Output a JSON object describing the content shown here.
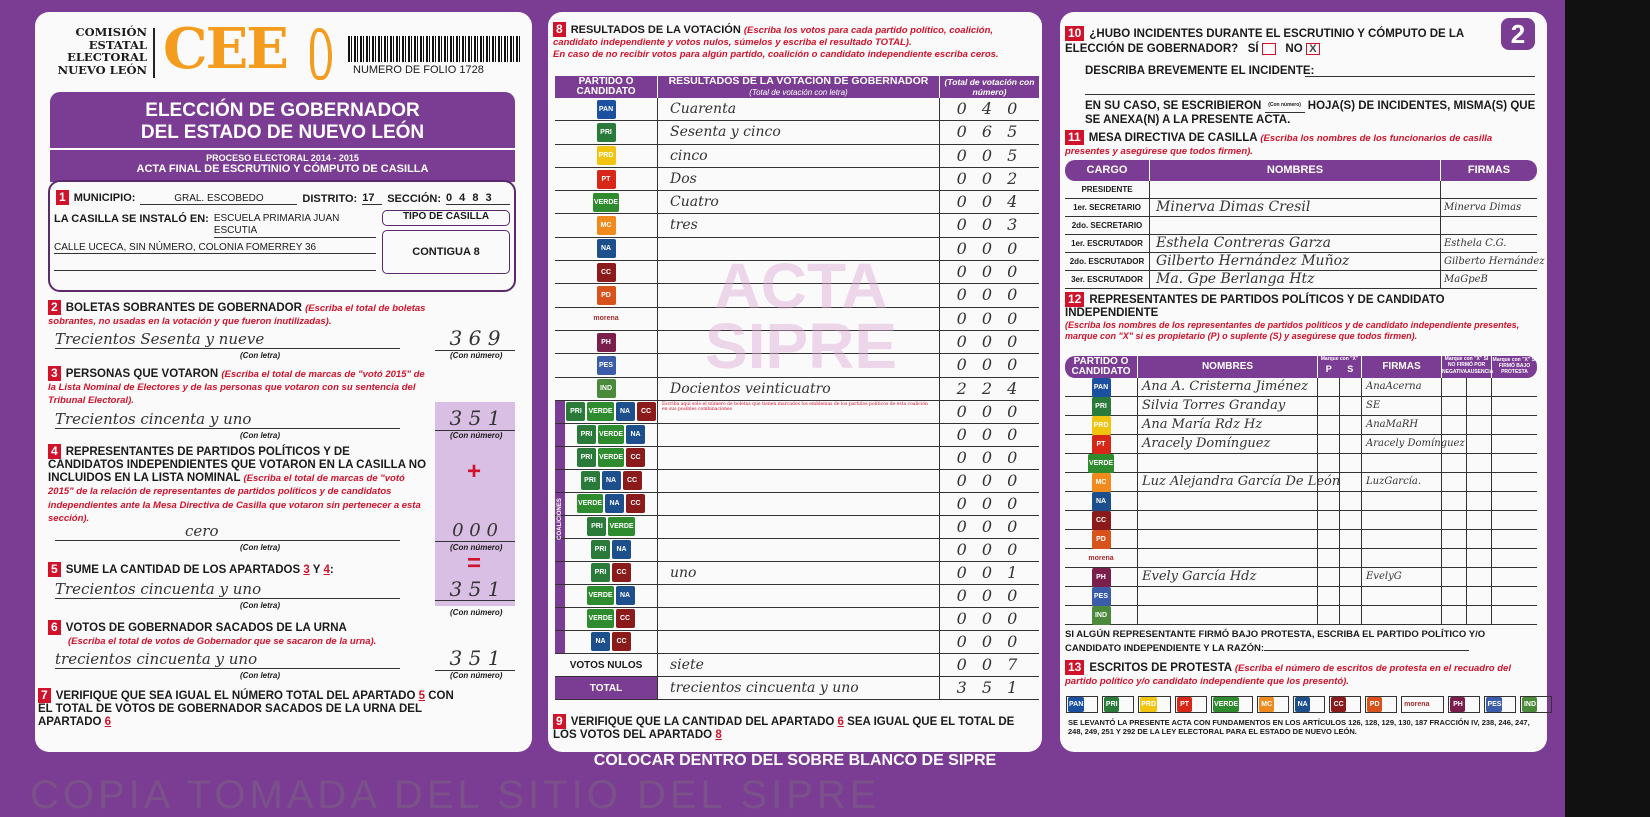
{
  "header": {
    "org_lines": [
      "COMISIÓN",
      "ESTATAL",
      "ELECTORAL",
      "NUEVO LEÓN"
    ],
    "logo": "CEE",
    "folio": "NUMERO DE FOLIO 1728",
    "page_number": "2"
  },
  "title": {
    "line1": "ELECCIÓN DE GOBERNADOR",
    "line2": "DEL ESTADO DE NUEVO LEÓN",
    "process": "PROCESO ELECTORAL  2014 - 2015",
    "acta": "ACTA FINAL DE ESCRUTINIO Y CÓMPUTO DE CASILLA"
  },
  "s1": {
    "n": "1",
    "municipio_label": "MUNICIPIO:",
    "municipio": "GRAL. ESCOBEDO",
    "distrito_label": "DISTRITO:",
    "distrito": "17",
    "seccion_label": "SECCIÓN:",
    "seccion": "0 4 8 3",
    "instalo_label": "LA CASILLA SE INSTALÓ EN:",
    "lugar": "ESCUELA PRIMARIA JUAN ESCUTIA",
    "direccion": "CALLE UCECA, SIN NÚMERO, COLONIA FOMERREY 36",
    "tipo_label": "TIPO DE CASILLA",
    "tipo": "CONTIGUA 8"
  },
  "s2": {
    "n": "2",
    "title": "BOLETAS SOBRANTES DE GOBERNADOR",
    "hint": "(Escriba el total de boletas sobrantes, no usadas en la votación y que fueron inutilizadas).",
    "letra": "Trecientos Sesenta y nueve",
    "numero": "3 6 9"
  },
  "s3": {
    "n": "3",
    "title": "PERSONAS QUE VOTARON",
    "hint": "(Escriba el total de marcas de \"votó 2015\" de la Lista Nominal de Electores y de las personas que votaron con su sentencia del Tribunal Electoral).",
    "letra": "Trecientos cincenta y uno",
    "numero": "3 5 1"
  },
  "s4": {
    "n": "4",
    "title": "REPRESENTANTES DE PARTIDOS POLÍTICOS Y DE CANDIDATOS INDEPENDIENTES QUE VOTARON EN LA CASILLA NO INCLUIDOS EN LA LISTA NOMINAL",
    "hint": "(Escriba el total de marcas de \"votó 2015\" de la relación de representantes de partidos políticos y de candidatos independientes ante la Mesa Directiva de Casilla que votaron sin pertenecer a esta sección).",
    "letra": "cero",
    "numero": "0 0 0",
    "plus": "+"
  },
  "s5": {
    "n": "5",
    "title": "SUME LA CANTIDAD DE LOS APARTADOS",
    "a": "3",
    "y": "Y",
    "b": "4",
    "colon": ":",
    "letra": "Trecientos cincuenta y uno",
    "numero": "3 5 1",
    "equals": "="
  },
  "s6": {
    "n": "6",
    "title": "VOTOS DE GOBERNADOR SACADOS DE LA URNA",
    "hint": "(Escriba el total de votos de Gobernador que se sacaron de la urna).",
    "letra": "trecientos cincuenta y uno",
    "numero": "3 5 1"
  },
  "s7": {
    "n": "7",
    "text1": "VERIFIQUE QUE SEA IGUAL EL NÚMERO TOTAL DEL APARTADO",
    "a": "5",
    "text2": "CON EL TOTAL DE VOTOS DE GOBERNADOR SACADOS DE LA URNA DEL APARTADO",
    "b": "6"
  },
  "labels": {
    "con_letra": "(Con letra)",
    "con_numero": "(Con número)"
  },
  "s8": {
    "n": "8",
    "title": "RESULTADOS DE LA VOTACIÓN",
    "hint": "(Escriba los votos para cada partido político, coalición, candidato independiente y votos nulos, súmelos y escriba el resultado TOTAL).",
    "hint2": "En caso de no recibir votos para algún partido, coalición o candidato independiente escriba ceros.",
    "col1": "PARTIDO O CANDIDATO",
    "col2": "RESULTADOS DE LA VOTACIÓN DE GOBERNADOR",
    "col2_sub": "(Total de votación con letra)",
    "col3": "(Total de votación con número)",
    "coaliciones_label": "COALICIONES",
    "coalition_note": "Escriba aquí solo el número de boletas que tienen marcados los emblemas de los partidos políticos de esta coalición en sus posibles combinaciones",
    "watermark": [
      "ACTA",
      "SIPRE"
    ],
    "parties": [
      {
        "logo": "PAN",
        "color": "#1b4fa0",
        "letra": "Cuarenta",
        "numero": "0 4 0"
      },
      {
        "logo": "PRI",
        "color": "#2a7a3a",
        "letra": "Sesenta y cinco",
        "numero": "0 6 5"
      },
      {
        "logo": "PRD",
        "color": "#f1c40f",
        "letra": "cinco",
        "numero": "0 0 5"
      },
      {
        "logo": "PT",
        "color": "#d62718",
        "letra": "Dos",
        "numero": "0 0 2"
      },
      {
        "logo": "VERDE",
        "color": "#2e8b2e",
        "letra": "Cuatro",
        "numero": "0 0 4"
      },
      {
        "logo": "MC",
        "color": "#f08a1c",
        "letra": "tres",
        "numero": "0 0 3"
      },
      {
        "logo": "NA",
        "color": "#1d4f8c",
        "letra": "",
        "numero": "0 0 0"
      },
      {
        "logo": "CC",
        "color": "#8b1a1a",
        "letra": "",
        "numero": "0 0 0"
      },
      {
        "logo": "PD",
        "color": "#d8531c",
        "letra": "",
        "numero": "0 0 0"
      },
      {
        "logo": "morena",
        "color": "#a52a2a",
        "letra": "",
        "numero": "0 0 0"
      },
      {
        "logo": "PH",
        "color": "#7a1f4b",
        "letra": "",
        "numero": "0 0 0"
      },
      {
        "logo": "PES",
        "color": "#3b5ca8",
        "letra": "",
        "numero": "0 0 0"
      },
      {
        "logo": "IND",
        "color": "#4a8a3a",
        "letra": "Docientos veinticuatro",
        "numero": "2 2 4"
      }
    ],
    "coalitions": [
      {
        "logos": [
          "PRI",
          "VERDE",
          "NA",
          "CC"
        ],
        "letra": "",
        "numero": "0 0 0"
      },
      {
        "logos": [
          "PRI",
          "VERDE",
          "NA"
        ],
        "letra": "",
        "numero": "0 0 0"
      },
      {
        "logos": [
          "PRI",
          "VERDE",
          "CC"
        ],
        "letra": "",
        "numero": "0 0 0"
      },
      {
        "logos": [
          "PRI",
          "NA",
          "CC"
        ],
        "letra": "",
        "numero": "0 0 0"
      },
      {
        "logos": [
          "VERDE",
          "NA",
          "CC"
        ],
        "letra": "",
        "numero": "0 0 0"
      },
      {
        "logos": [
          "PRI",
          "VERDE"
        ],
        "letra": "",
        "numero": "0 0 0"
      },
      {
        "logos": [
          "PRI",
          "NA"
        ],
        "letra": "",
        "numero": "0 0 0"
      },
      {
        "logos": [
          "PRI",
          "CC"
        ],
        "letra": "uno",
        "numero": "0 0 1"
      },
      {
        "logos": [
          "VERDE",
          "NA"
        ],
        "letra": "",
        "numero": "0 0 0"
      },
      {
        "logos": [
          "VERDE",
          "CC"
        ],
        "letra": "",
        "numero": "0 0 0"
      },
      {
        "logos": [
          "NA",
          "CC"
        ],
        "letra": "",
        "numero": "0 0 0"
      }
    ],
    "nulos": {
      "label": "VOTOS NULOS",
      "letra": "siete",
      "numero": "0 0 7"
    },
    "total": {
      "label": "TOTAL",
      "letra": "trecientos cincuenta y uno",
      "numero": "3 5 1"
    }
  },
  "s9": {
    "n": "9",
    "text1": "VERIFIQUE QUE LA CANTIDAD DEL APARTADO",
    "a": "6",
    "text2": "SEA IGUAL QUE EL TOTAL DE LOS VOTOS DEL APARTADO",
    "b": "8"
  },
  "s10": {
    "n": "10",
    "question": "¿HUBO INCIDENTES DURANTE EL ESCRUTINIO Y CÓMPUTO DE LA ELECCIÓN DE GOBERNADOR?",
    "si": "SÍ",
    "no": "NO",
    "no_mark": "X",
    "describe": "DESCRIBA BREVEMENTE EL INCIDENTE:",
    "hojas1": "EN SU CASO, SE ESCRIBIERON",
    "hojas_sub": "(Con número)",
    "hojas2": "HOJA(S) DE INCIDENTES, MISMA(S) QUE SE ANEXA(N) A LA PRESENTE ACTA."
  },
  "s11": {
    "n": "11",
    "title": "MESA DIRECTIVA DE CASILLA",
    "hint": "(Escriba los nombres de los funcionarios de casilla presentes y asegúrese que todos firmen).",
    "col_cargo": "CARGO",
    "col_nombres": "NOMBRES",
    "col_firmas": "FIRMAS",
    "rows": [
      {
        "cargo": "PRESIDENTE",
        "nombre": "",
        "firma": ""
      },
      {
        "cargo": "1er. SECRETARIO",
        "nombre": "Minerva Dimas Cresil",
        "firma": "Minerva Dimas"
      },
      {
        "cargo": "2do. SECRETARIO",
        "nombre": "",
        "firma": ""
      },
      {
        "cargo": "1er. ESCRUTADOR",
        "nombre": "Esthela Contreras Garza",
        "firma": "Esthela C.G."
      },
      {
        "cargo": "2do. ESCRUTADOR",
        "nombre": "Gilberto Hernández Muñoz",
        "firma": "Gilberto Hernández"
      },
      {
        "cargo": "3er. ESCRUTADOR",
        "nombre": "Ma. Gpe Berlanga Htz",
        "firma": "MaGpeB"
      }
    ]
  },
  "s12": {
    "n": "12",
    "title": "REPRESENTANTES DE PARTIDOS POLÍTICOS Y DE CANDIDATO INDEPENDIENTE",
    "hint": "(Escriba los nombres de los representantes de partidos políticos y de candidato independiente presentes, marque con \"X\" si es propietario (P) o suplente (S) y asegúrese que todos firmen).",
    "col_partido": "PARTIDO O CANDIDATO",
    "col_nombres": "NOMBRES",
    "col_ps": "Marque con \"X\"",
    "p": "P",
    "s": "S",
    "col_firmas": "FIRMAS",
    "col_no_firmo": "Marque con \"X\" SI NO FIRMÓ POR",
    "negativa": "NEGATIVA",
    "ausencia": "AUSENCIA",
    "col_protesta": "Marque con \"X\" SI FIRMÓ BAJO PROTESTA",
    "rows": [
      {
        "logo": "PAN",
        "nombre": "Ana A. Cristerna Jiménez",
        "firma": "AnaAcerna"
      },
      {
        "logo": "PRI",
        "nombre": "Silvia Torres Granday",
        "firma": "SE"
      },
      {
        "logo": "PRD",
        "nombre": "Ana María Rdz Hz",
        "firma": "AnaMaRH"
      },
      {
        "logo": "PT",
        "nombre": "Aracely Domínguez",
        "firma": "Aracely Domínguez"
      },
      {
        "logo": "VERDE",
        "nombre": "",
        "firma": ""
      },
      {
        "logo": "MC",
        "nombre": "Luz Alejandra García De León",
        "firma": "LuzGarcía."
      },
      {
        "logo": "NA",
        "nombre": "",
        "firma": ""
      },
      {
        "logo": "CC",
        "nombre": "",
        "firma": ""
      },
      {
        "logo": "PD",
        "nombre": "",
        "firma": ""
      },
      {
        "logo": "morena",
        "nombre": "",
        "firma": ""
      },
      {
        "logo": "PH",
        "nombre": "Evely García Hdz",
        "firma": "EvelyG"
      },
      {
        "logo": "PES",
        "nombre": "",
        "firma": ""
      },
      {
        "logo": "IND",
        "nombre": "",
        "firma": ""
      }
    ],
    "protesta_text": "SI ALGÚN REPRESENTANTE FIRMÓ BAJO PROTESTA, ESCRIBA EL PARTIDO POLÍTICO Y/O CANDIDATO INDEPENDIENTE Y LA RAZÓN:"
  },
  "s13": {
    "n": "13",
    "title": "ESCRITOS DE PROTESTA",
    "hint": "(Escriba el número de escritos de protesta en el recuadro del partido político y/o candidato independiente que los presentó).",
    "boxes": [
      "PAN",
      "PRI",
      "PRD",
      "PT",
      "VERDE",
      "MC",
      "NA",
      "CC",
      "PD",
      "morena",
      "PH",
      "PES",
      "IND"
    ]
  },
  "legal": "SE LEVANTÓ LA PRESENTE ACTA CON FUNDAMENTOS EN LOS ARTÍCULOS 126, 128, 129, 130, 187 FRACCIÓN IV, 238, 246, 247, 248, 249, 251 Y 292 DE LA LEY ELECTORAL PARA EL ESTADO DE NUEVO LEÓN.",
  "footer": "COLOCAR DENTRO DEL SOBRE BLANCO DE SIPRE",
  "watermark": "COPIA TOMADA DEL SITIO DEL SIPRE",
  "colors": {
    "purple": "#7b3d93",
    "red": "#d0122a",
    "orange": "#f39c1e"
  }
}
